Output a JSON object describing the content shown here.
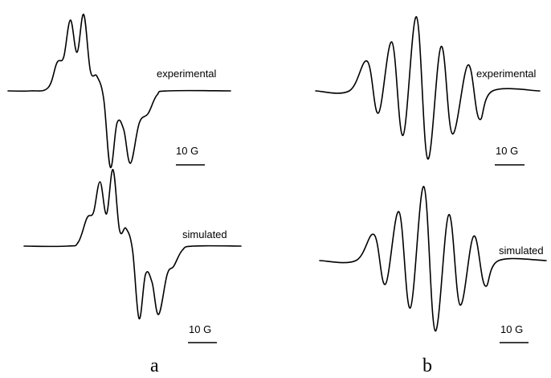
{
  "chart_data": [
    {
      "type": "line",
      "panel": "a",
      "series": [
        {
          "label": "experimental",
          "scale_label": "10 G",
          "points": [
            [
              0,
              0
            ],
            [
              0.1,
              0
            ],
            [
              0.18,
              0.04
            ],
            [
              0.22,
              0.35
            ],
            [
              0.25,
              0.42
            ],
            [
              0.28,
              0.88
            ],
            [
              0.31,
              0.48
            ],
            [
              0.34,
              0.95
            ],
            [
              0.37,
              0.25
            ],
            [
              0.4,
              0.18
            ],
            [
              0.43,
              -0.1
            ],
            [
              0.46,
              -0.95
            ],
            [
              0.49,
              -0.4
            ],
            [
              0.52,
              -0.48
            ],
            [
              0.55,
              -0.9
            ],
            [
              0.59,
              -0.4
            ],
            [
              0.63,
              -0.28
            ],
            [
              0.67,
              -0.05
            ],
            [
              0.72,
              0
            ],
            [
              1,
              0
            ]
          ]
        },
        {
          "label": "simulated",
          "scale_label": "10 G",
          "points": [
            [
              0,
              0
            ],
            [
              0.2,
              0
            ],
            [
              0.25,
              0.05
            ],
            [
              0.29,
              0.35
            ],
            [
              0.32,
              0.42
            ],
            [
              0.35,
              0.8
            ],
            [
              0.38,
              0.4
            ],
            [
              0.41,
              0.95
            ],
            [
              0.44,
              0.2
            ],
            [
              0.47,
              0.22
            ],
            [
              0.5,
              -0.05
            ],
            [
              0.53,
              -0.9
            ],
            [
              0.56,
              -0.35
            ],
            [
              0.59,
              -0.45
            ],
            [
              0.62,
              -0.85
            ],
            [
              0.66,
              -0.35
            ],
            [
              0.69,
              -0.25
            ],
            [
              0.73,
              -0.05
            ],
            [
              0.78,
              0
            ],
            [
              1,
              0
            ]
          ]
        }
      ]
    },
    {
      "type": "line",
      "panel": "b",
      "series": [
        {
          "label": "experimental",
          "scale_label": "10 G",
          "points": [
            [
              0,
              0
            ],
            [
              0.15,
              0
            ],
            [
              0.23,
              0.4
            ],
            [
              0.28,
              -0.3
            ],
            [
              0.34,
              0.66
            ],
            [
              0.39,
              -0.6
            ],
            [
              0.45,
              1.0
            ],
            [
              0.5,
              -0.92
            ],
            [
              0.56,
              0.6
            ],
            [
              0.61,
              -0.58
            ],
            [
              0.68,
              0.35
            ],
            [
              0.73,
              -0.38
            ],
            [
              0.79,
              0
            ],
            [
              1,
              0
            ]
          ]
        },
        {
          "label": "simulated",
          "scale_label": "10 G",
          "points": [
            [
              0,
              0
            ],
            [
              0.16,
              0
            ],
            [
              0.24,
              0.35
            ],
            [
              0.29,
              -0.32
            ],
            [
              0.35,
              0.66
            ],
            [
              0.4,
              -0.64
            ],
            [
              0.46,
              1.0
            ],
            [
              0.51,
              -0.95
            ],
            [
              0.57,
              0.62
            ],
            [
              0.62,
              -0.6
            ],
            [
              0.68,
              0.33
            ],
            [
              0.73,
              -0.34
            ],
            [
              0.79,
              0
            ],
            [
              1,
              0
            ]
          ]
        }
      ]
    }
  ]
}
